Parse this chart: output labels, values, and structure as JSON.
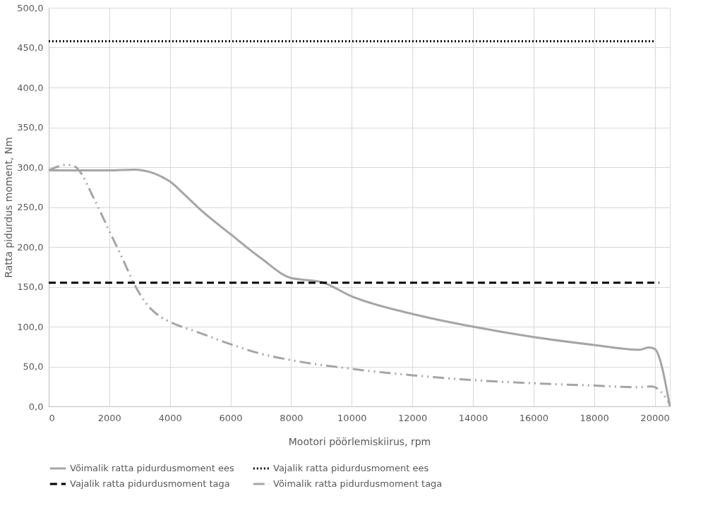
{
  "chart_data": {
    "type": "line",
    "xlabel": "Mootori pöörlemiskiirus, rpm",
    "ylabel": "Ratta pidurdus moment, Nm",
    "xlim": [
      0,
      20500
    ],
    "xticks": [
      0,
      2000,
      4000,
      6000,
      8000,
      10000,
      12000,
      14000,
      16000,
      18000,
      20000
    ],
    "ylim": [
      0,
      500
    ],
    "yticks": [
      {
        "value": 0,
        "label": "0,0"
      },
      {
        "value": 50,
        "label": "50,0"
      },
      {
        "value": 100,
        "label": "100,0"
      },
      {
        "value": 150,
        "label": "150,0"
      },
      {
        "value": 200,
        "label": "200,0"
      },
      {
        "value": 250,
        "label": "250,0"
      },
      {
        "value": 300,
        "label": "300,0"
      },
      {
        "value": 350,
        "label": "350,0"
      },
      {
        "value": 400,
        "label": "400,0"
      },
      {
        "value": 450,
        "label": "450,0"
      },
      {
        "value": 500,
        "label": "500,0"
      }
    ],
    "grid": true,
    "legend": "bottom",
    "marker": "none",
    "series": [
      {
        "name": "Võimalik ratta pidurdusmoment ees",
        "color": "#a5a5a5",
        "line_style": "solid",
        "x": [
          0,
          2000,
          2800,
          3500,
          4000,
          4500,
          5000,
          6000,
          7000,
          8000,
          9000,
          10000,
          12000,
          14000,
          16000,
          18000,
          19500,
          19800,
          20000,
          20500
        ],
        "values": [
          296,
          296,
          297,
          292,
          282,
          265,
          247,
          216,
          186,
          161,
          156,
          138,
          116,
          100,
          87,
          77,
          71,
          74,
          72,
          0
        ]
      },
      {
        "name": "Vajalik ratta pidurdusmoment ees",
        "color": "#000000",
        "line_style": "dotted",
        "x": [
          0,
          20000
        ],
        "values": [
          458,
          458
        ]
      },
      {
        "name": "Vajalik ratta pidurdusmoment taga",
        "color": "#000000",
        "line_style": "dashed",
        "x": [
          0,
          20150
        ],
        "values": [
          155,
          155
        ]
      },
      {
        "name": "Võimalik ratta pidurdusmoment taga",
        "color": "#a5a5a5",
        "line_style": "dashdot",
        "x": [
          0,
          600,
          900,
          1000,
          1500,
          2000,
          2500,
          2800,
          3200,
          3700,
          4000,
          5000,
          6000,
          7000,
          8000,
          10000,
          12000,
          14000,
          16000,
          18000,
          19500,
          19900,
          20100,
          20500
        ],
        "values": [
          296,
          303,
          300,
          296,
          260,
          220,
          180,
          155,
          130,
          112,
          106,
          92,
          78,
          66,
          58,
          47,
          39,
          33,
          29,
          26,
          24,
          25,
          22,
          3
        ]
      }
    ]
  }
}
